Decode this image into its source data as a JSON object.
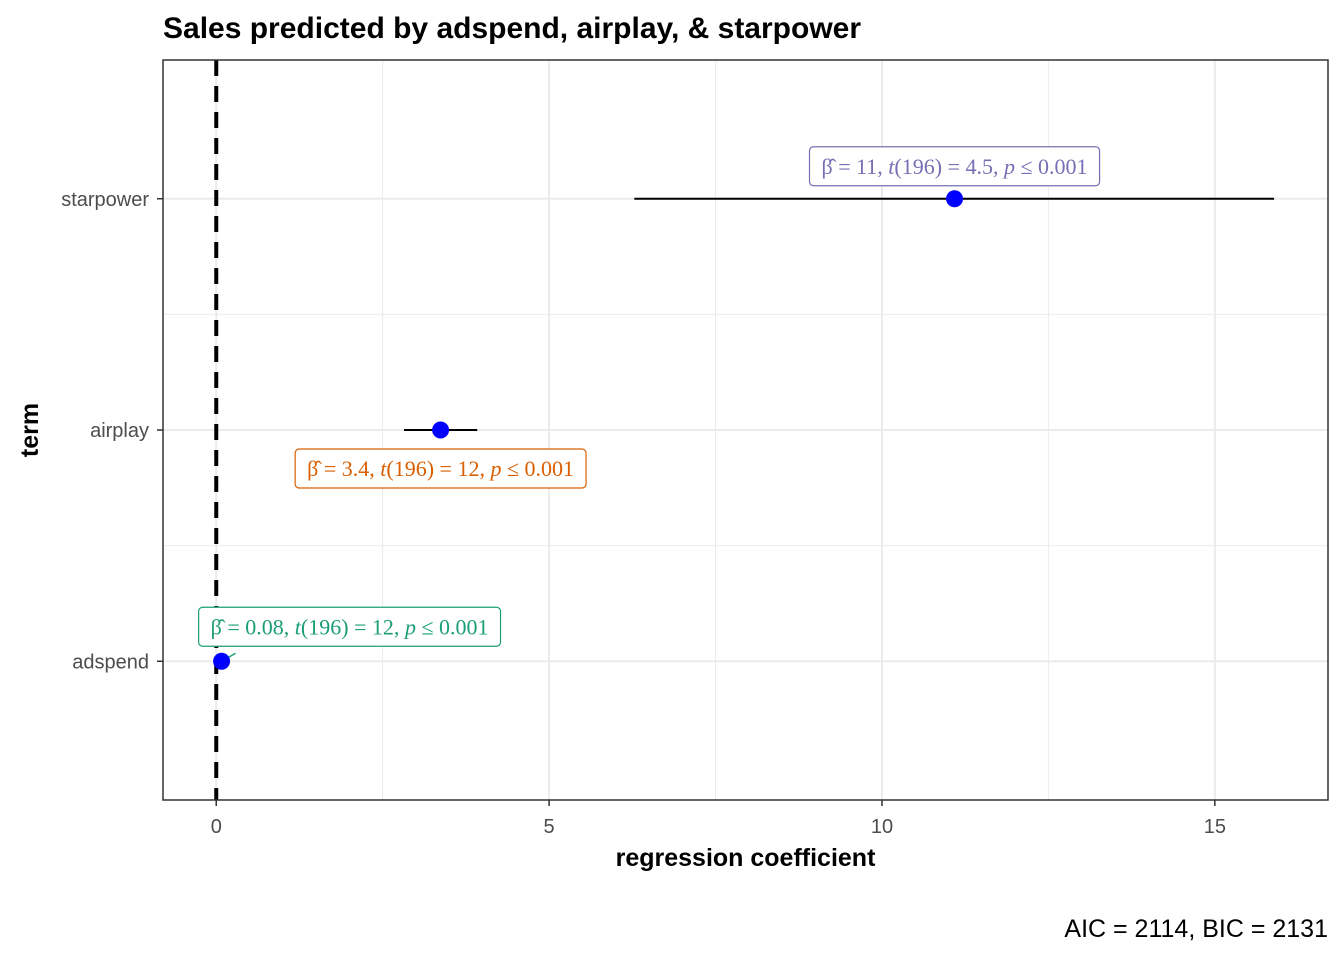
{
  "chart_data": {
    "type": "scatter",
    "title": "Sales predicted by adspend, airplay, & starpower",
    "xlabel": "regression coefficient",
    "ylabel": "term",
    "xlim": [
      -0.8,
      16.7
    ],
    "xticks": [
      0,
      5,
      10,
      15
    ],
    "grid": true,
    "reference_line": {
      "x": 0,
      "style": "dashed"
    },
    "caption": "AIC = 2114, BIC = 2131",
    "point_color": "#0000ff",
    "terms": [
      {
        "term": "adspend",
        "estimate": 0.08,
        "conf_low": 0.07,
        "conf_high": 0.1,
        "label": {
          "beta": "0.08",
          "df": "196",
          "t": "12",
          "p": "0.001"
        },
        "label_color": "#1b9e77"
      },
      {
        "term": "airplay",
        "estimate": 3.37,
        "conf_low": 2.82,
        "conf_high": 3.92,
        "label": {
          "beta": "3.4",
          "df": "196",
          "t": "12",
          "p": "0.001"
        },
        "label_color": "#d95f02"
      },
      {
        "term": "starpower",
        "estimate": 11.09,
        "conf_low": 6.28,
        "conf_high": 15.89,
        "label": {
          "beta": "11",
          "df": "196",
          "t": "4.5",
          "p": "0.001"
        },
        "label_color": "#7570b3"
      }
    ]
  }
}
